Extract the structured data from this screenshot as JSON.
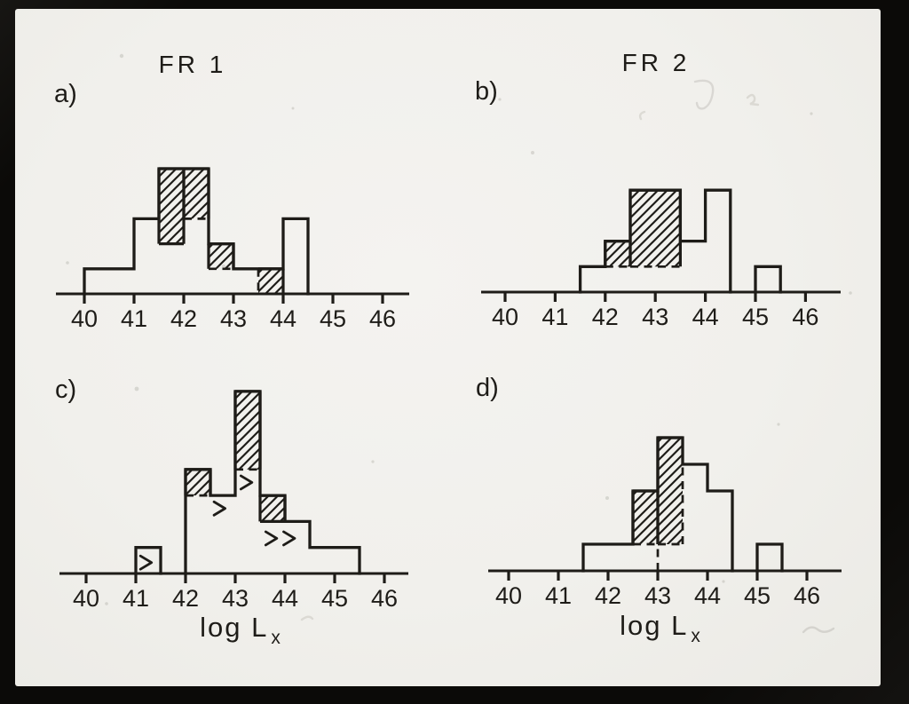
{
  "figure": {
    "description_labels": {
      "panel_a_letter": "a)",
      "panel_b_letter": "b)",
      "panel_c_letter": "c)",
      "panel_d_letter": "d)",
      "title_left": "FR 1",
      "title_right": "FR 2",
      "x_axis_label": "log L",
      "x_axis_label_subscript": "x"
    },
    "colors": {
      "ink": "#1e1c18",
      "paper": "#f1f0ec",
      "frame": "#0b0a08",
      "artifact_gray": "#b8b5ae"
    }
  },
  "chart_data": [
    {
      "type": "histogram",
      "panel_label": "a)",
      "title": "FR 1",
      "xlabel": null,
      "xlabel_sub": null,
      "x_ticks": [
        40,
        41,
        42,
        43,
        44,
        45,
        46
      ],
      "bin_width": 0.5,
      "xlim": [
        39.4,
        46.6
      ],
      "series": [
        {
          "name": "open_outline_total",
          "style": "open",
          "bin_start": 40.0,
          "counts": [
            1,
            1,
            3,
            5,
            5,
            2,
            1,
            1,
            3
          ]
        },
        {
          "name": "hatched_subset",
          "style": "hatched",
          "segments": [
            {
              "x0": 41.5,
              "x1": 42.0,
              "y0": 2,
              "y1": 5,
              "bottom": "solid"
            },
            {
              "x0": 42.0,
              "x1": 42.5,
              "y0": 3,
              "y1": 5,
              "bottom": "dashed"
            },
            {
              "x0": 42.5,
              "x1": 43.0,
              "y0": 1,
              "y1": 2,
              "bottom": "dashed"
            },
            {
              "x0": 43.5,
              "x1": 44.0,
              "y0": 0,
              "y1": 1,
              "bottom": "none",
              "left": "dashed"
            }
          ]
        }
      ],
      "dashed_lines": [
        [
          42.0,
          2,
          42.0,
          3
        ]
      ],
      "limit_markers": []
    },
    {
      "type": "histogram",
      "panel_label": "b)",
      "title": "FR 2",
      "xlabel": null,
      "xlabel_sub": null,
      "x_ticks": [
        40,
        41,
        42,
        43,
        44,
        45,
        46
      ],
      "bin_width": 0.5,
      "xlim": [
        39.4,
        46.6
      ],
      "series": [
        {
          "name": "open_outline_total",
          "style": "open",
          "bin_start": 41.5,
          "counts": [
            1,
            2,
            4,
            4,
            2,
            4,
            0,
            1
          ]
        },
        {
          "name": "hatched_subset",
          "style": "hatched",
          "segments": [
            {
              "x0": 42.0,
              "x1": 42.5,
              "y0": 1,
              "y1": 2,
              "bottom": "dashed"
            },
            {
              "x0": 42.5,
              "x1": 43.5,
              "y0": 1,
              "y1": 4,
              "bottom": "dashed"
            }
          ]
        }
      ],
      "dashed_lines": [],
      "limit_markers": []
    },
    {
      "type": "histogram",
      "panel_label": "c)",
      "title": null,
      "xlabel": "log L",
      "xlabel_sub": "x",
      "x_ticks": [
        40,
        41,
        42,
        43,
        44,
        45,
        46
      ],
      "bin_width": 0.5,
      "xlim": [
        39.4,
        46.6
      ],
      "series": [
        {
          "name": "open_outline_total",
          "style": "open",
          "bin_start": 41.0,
          "counts": [
            1,
            0,
            4,
            3,
            7,
            3,
            2,
            1,
            1
          ]
        },
        {
          "name": "hatched_subset",
          "style": "hatched",
          "segments": [
            {
              "x0": 42.0,
              "x1": 42.5,
              "y0": 3,
              "y1": 4,
              "bottom": "dashed"
            },
            {
              "x0": 43.0,
              "x1": 43.5,
              "y0": 4,
              "y1": 7,
              "bottom": "dashed"
            },
            {
              "x0": 43.5,
              "x1": 44.0,
              "y0": 2,
              "y1": 3,
              "bottom": "solid"
            }
          ]
        }
      ],
      "dashed_lines": [],
      "limit_markers": [
        {
          "x": 41.2,
          "y": 0.42,
          "glyph": ">"
        },
        {
          "x": 42.68,
          "y": 2.5,
          "glyph": ">"
        },
        {
          "x": 43.22,
          "y": 3.5,
          "glyph": ">"
        },
        {
          "x": 43.72,
          "y": 1.35,
          "glyph": ">"
        },
        {
          "x": 44.08,
          "y": 1.35,
          "glyph": ">"
        }
      ]
    },
    {
      "type": "histogram",
      "panel_label": "d)",
      "title": null,
      "xlabel": "log L",
      "xlabel_sub": "x",
      "x_ticks": [
        40,
        41,
        42,
        43,
        44,
        45,
        46
      ],
      "bin_width": 0.5,
      "xlim": [
        39.4,
        46.6
      ],
      "series": [
        {
          "name": "open_outline_total",
          "style": "open",
          "bin_start": 41.5,
          "counts": [
            1,
            1,
            3,
            5,
            4,
            3,
            0,
            1
          ]
        },
        {
          "name": "hatched_subset",
          "style": "hatched",
          "segments": [
            {
              "x0": 42.5,
              "x1": 43.0,
              "y0": 1,
              "y1": 3,
              "bottom": "dashed"
            },
            {
              "x0": 43.0,
              "x1": 43.5,
              "y0": 1,
              "y1": 5,
              "bottom": "dashed",
              "right": "none"
            }
          ]
        }
      ],
      "dashed_lines": [
        [
          43.0,
          0,
          43.0,
          1
        ],
        [
          43.5,
          1,
          43.5,
          4
        ]
      ],
      "limit_markers": []
    }
  ]
}
